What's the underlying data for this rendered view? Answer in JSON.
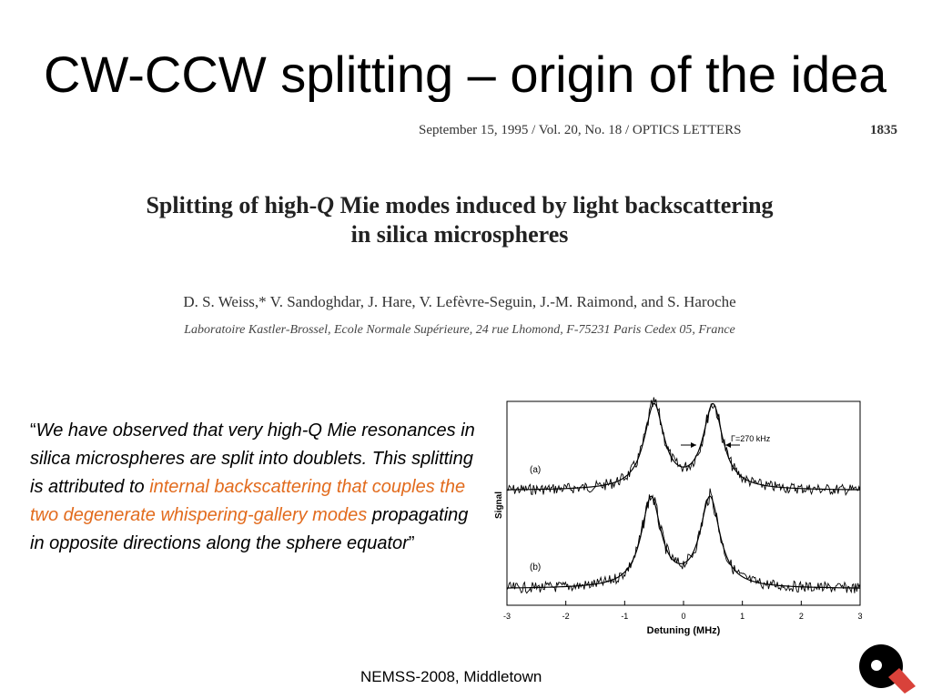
{
  "slide": {
    "title": "CW-CCW splitting – origin of the idea",
    "footer": "NEMSS-2008, Middletown"
  },
  "paper": {
    "journal_line": "September 15, 1995 / Vol. 20, No. 18 / OPTICS LETTERS",
    "page_number": "1835",
    "title_part1": "Splitting of high-",
    "title_q": "Q",
    "title_part2": " Mie modes induced by light backscattering",
    "title_line2": "in silica microspheres",
    "authors": "D. S. Weiss,* V. Sandoghdar, J. Hare, V. Lefèvre-Seguin, J.-M. Raimond, and S. Haroche",
    "affiliation": "Laboratoire Kastler-Brossel, Ecole Normale Supérieure, 24 rue Lhomond, F-75231 Paris Cedex 05, France"
  },
  "quote": {
    "open_mark": "“",
    "text_before": "We have observed that very high-Q Mie resonances in silica microspheres are split into doublets. This splitting is attributed to ",
    "text_highlight": "internal backscattering that couples the two degenerate whispering-gallery modes",
    "text_after": " propagating in opposite directions along the sphere equator",
    "close_mark": "”",
    "highlight_color": "#e26b1d"
  },
  "chart_data": {
    "type": "line",
    "xlabel": "Detuning (MHz)",
    "ylabel": "Signal",
    "xlim": [
      -3,
      3
    ],
    "x_ticks": [
      "-3",
      "-2",
      "-1",
      "0",
      "1",
      "2",
      "3"
    ],
    "annotation": "Γ=270 kHz",
    "series": [
      {
        "name": "(a)",
        "fit_peaks_mhz": [
          -0.5,
          0.5
        ],
        "linewidth_mhz": 0.27
      },
      {
        "name": "(b)",
        "fit_peaks_mhz": [
          -0.55,
          0.45
        ],
        "linewidth_mhz": 0.27
      }
    ]
  },
  "colors": {
    "accent": "#e26b1d",
    "logo_red": "#d9423a"
  }
}
